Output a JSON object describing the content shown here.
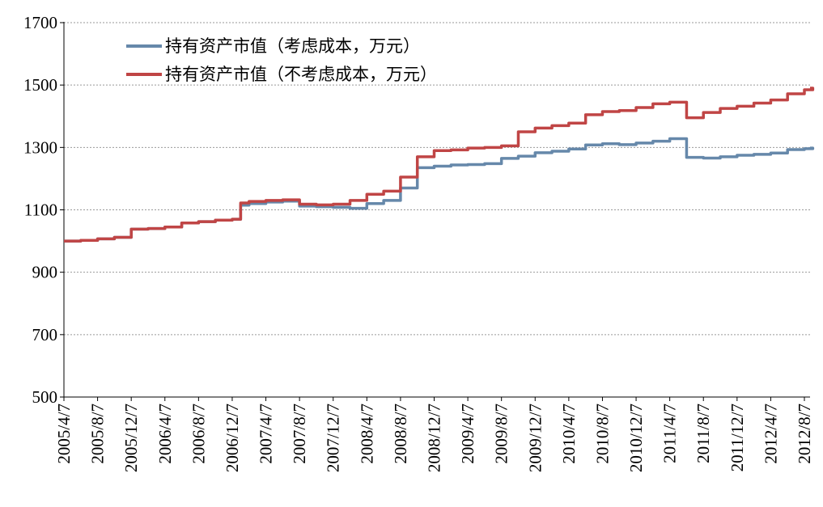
{
  "chart_data": {
    "type": "line",
    "ylim": [
      500,
      1700
    ],
    "yticks": [
      500,
      700,
      900,
      1100,
      1300,
      1500,
      1700
    ],
    "grid": "horizontal dotted",
    "legend_placement": "top-left",
    "x_tick_labels": [
      "2005/4/7",
      "2005/8/7",
      "2005/12/7",
      "2006/4/7",
      "2006/8/7",
      "2006/12/7",
      "2007/4/7",
      "2007/8/7",
      "2007/12/7",
      "2008/4/7",
      "2008/8/7",
      "2008/12/7",
      "2009/4/7",
      "2009/8/7",
      "2009/12/7",
      "2010/4/7",
      "2010/8/7",
      "2010/12/7",
      "2011/4/7",
      "2011/8/7",
      "2011/12/7",
      "2012/4/7",
      "2012/8/7"
    ],
    "x": [
      "2005/4",
      "2005/6",
      "2005/8",
      "2005/10",
      "2005/12",
      "2006/2",
      "2006/4",
      "2006/6",
      "2006/8",
      "2006/10",
      "2006/12",
      "2007/1",
      "2007/2",
      "2007/4",
      "2007/6",
      "2007/8",
      "2007/10",
      "2007/12",
      "2008/2",
      "2008/4",
      "2008/6",
      "2008/8",
      "2008/10",
      "2008/12",
      "2009/2",
      "2009/4",
      "2009/6",
      "2009/8",
      "2009/10",
      "2009/12",
      "2010/2",
      "2010/4",
      "2010/6",
      "2010/8",
      "2010/10",
      "2010/12",
      "2011/2",
      "2011/4",
      "2011/6",
      "2011/8",
      "2011/10",
      "2011/12",
      "2012/2",
      "2012/4",
      "2012/6",
      "2012/8",
      "2012/9"
    ],
    "series": [
      {
        "name": "持有资产市值（考虑成本，万元）",
        "color": "#6688aa",
        "values": [
          1000,
          1002,
          1007,
          1012,
          1038,
          1040,
          1045,
          1058,
          1062,
          1067,
          1070,
          1115,
          1120,
          1125,
          1128,
          1112,
          1110,
          1108,
          1105,
          1120,
          1130,
          1170,
          1235,
          1240,
          1244,
          1245,
          1248,
          1265,
          1272,
          1283,
          1288,
          1295,
          1308,
          1312,
          1309,
          1314,
          1320,
          1328,
          1268,
          1266,
          1270,
          1275,
          1278,
          1282,
          1293,
          1296,
          1298
        ]
      },
      {
        "name": "持有资产市值（不考虑成本，万元）",
        "color": "#c04545",
        "values": [
          1000,
          1002,
          1007,
          1012,
          1038,
          1040,
          1045,
          1058,
          1062,
          1067,
          1070,
          1122,
          1127,
          1130,
          1132,
          1118,
          1116,
          1118,
          1130,
          1150,
          1160,
          1205,
          1270,
          1290,
          1292,
          1298,
          1300,
          1305,
          1350,
          1362,
          1370,
          1378,
          1405,
          1415,
          1418,
          1428,
          1440,
          1445,
          1395,
          1412,
          1425,
          1432,
          1442,
          1452,
          1472,
          1485,
          1490
        ]
      }
    ]
  }
}
